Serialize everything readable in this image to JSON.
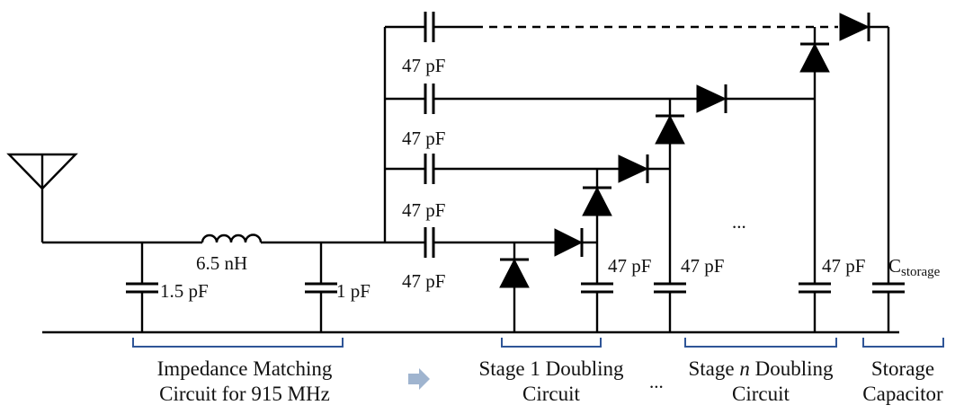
{
  "components": {
    "inductor": "6.5 nH",
    "cap_shunt_1": "1.5 pF",
    "cap_shunt_2": "1 pF",
    "cap_series": "47 pF",
    "cap_stage": "47 pF",
    "cap_storage_main": "C",
    "cap_storage_sub": "storage",
    "ellipsis": "..."
  },
  "sections": {
    "impedance_line1": "Impedance Matching",
    "impedance_line2": "Circuit for 915 MHz",
    "stage1_line1": "Stage 1 Doubling",
    "stage1_line2": "Circuit",
    "stagen_prefix": "Stage ",
    "stagen_n": "n",
    "stagen_suffix": " Doubling",
    "stagen_line2": "Circuit",
    "storage_line1": "Storage",
    "storage_line2": "Capacitor",
    "between_ellipsis": "..."
  },
  "colors": {
    "brace": "#2f5597",
    "arrow": "#9fb4cf",
    "wire": "#000000"
  }
}
